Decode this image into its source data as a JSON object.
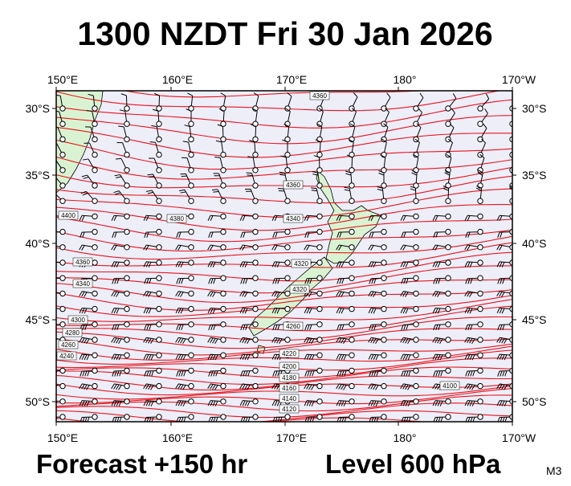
{
  "title": "1300 NZDT Fri 30 Jan 2026",
  "footer": {
    "forecast": "Forecast +150 hr",
    "level": "Level 600 hPa",
    "model": "M3"
  },
  "axes": {
    "longitude": [
      "150°E",
      "160°E",
      "170°E",
      "180°",
      "170°W"
    ],
    "latitude": [
      "30°S",
      "35°S",
      "40°S",
      "45°S",
      "50°S"
    ]
  },
  "contour_labels": [
    "4360",
    "4400",
    "4380",
    "4360",
    "4340",
    "4360",
    "4340",
    "4320",
    "4320",
    "4300",
    "4280",
    "4260",
    "4240",
    "4220",
    "4200",
    "4180",
    "4160",
    "4140",
    "4120",
    "4100",
    "4260"
  ]
}
